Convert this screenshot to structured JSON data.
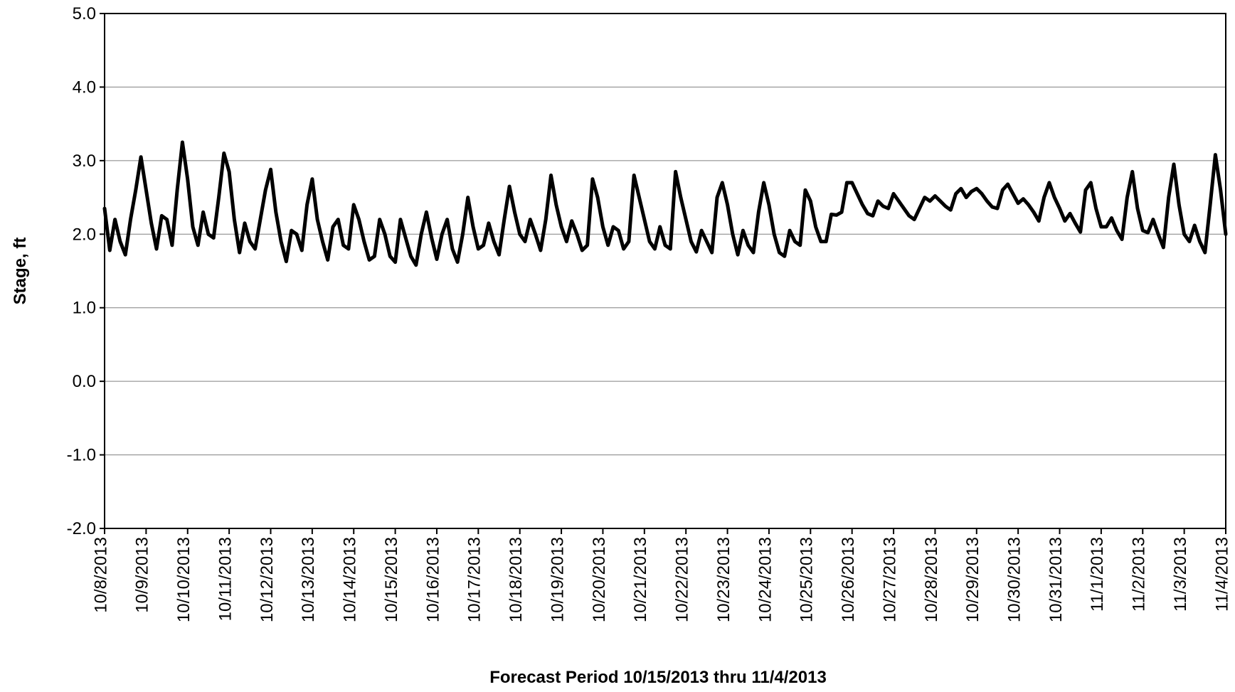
{
  "chart_data": {
    "type": "line",
    "y_label": "Stage, ft",
    "x_label": "Forecast Period 10/15/2013 thru 11/4/2013",
    "categories": [
      "10/8/2013",
      null,
      null,
      null,
      null,
      null,
      null,
      null,
      "10/9/2013",
      null,
      null,
      null,
      null,
      null,
      null,
      null,
      "10/10/2013",
      null,
      null,
      null,
      null,
      null,
      null,
      null,
      "10/11/2013",
      null,
      null,
      null,
      null,
      null,
      null,
      null,
      "10/12/2013",
      null,
      null,
      null,
      null,
      null,
      null,
      null,
      "10/13/2013",
      null,
      null,
      null,
      null,
      null,
      null,
      null,
      "10/14/2013",
      null,
      null,
      null,
      null,
      null,
      null,
      null,
      "10/15/2013",
      null,
      null,
      null,
      null,
      null,
      null,
      null,
      "10/16/2013",
      null,
      null,
      null,
      null,
      null,
      null,
      null,
      "10/17/2013",
      null,
      null,
      null,
      null,
      null,
      null,
      null,
      "10/18/2013",
      null,
      null,
      null,
      null,
      null,
      null,
      null,
      "10/19/2013",
      null,
      null,
      null,
      null,
      null,
      null,
      null,
      "10/20/2013",
      null,
      null,
      null,
      null,
      null,
      null,
      null,
      "10/21/2013",
      null,
      null,
      null,
      null,
      null,
      null,
      null,
      "10/22/2013",
      null,
      null,
      null,
      null,
      null,
      null,
      null,
      "10/23/2013",
      null,
      null,
      null,
      null,
      null,
      null,
      null,
      "10/24/2013",
      null,
      null,
      null,
      null,
      null,
      null,
      null,
      "10/25/2013",
      null,
      null,
      null,
      null,
      null,
      null,
      null,
      "10/26/2013",
      null,
      null,
      null,
      null,
      null,
      null,
      null,
      "10/27/2013",
      null,
      null,
      null,
      null,
      null,
      null,
      null,
      "10/28/2013",
      null,
      null,
      null,
      null,
      null,
      null,
      null,
      "10/29/2013",
      null,
      null,
      null,
      null,
      null,
      null,
      null,
      "10/30/2013",
      null,
      null,
      null,
      null,
      null,
      null,
      null,
      "10/31/2013",
      null,
      null,
      null,
      null,
      null,
      null,
      null,
      "11/1/2013",
      null,
      null,
      null,
      null,
      null,
      null,
      null,
      "11/2/2013",
      null,
      null,
      null,
      null,
      null,
      null,
      null,
      "11/3/2013",
      null,
      null,
      null,
      null,
      null,
      null,
      null,
      "11/4/2013"
    ],
    "series": [
      {
        "color": "#000000",
        "values": [
          2.35,
          1.78,
          2.2,
          1.9,
          1.72,
          2.2,
          2.6,
          3.05,
          2.6,
          2.15,
          1.8,
          2.25,
          2.2,
          1.85,
          2.6,
          3.25,
          2.75,
          2.1,
          1.85,
          2.3,
          2.0,
          1.95,
          2.5,
          3.1,
          2.85,
          2.2,
          1.75,
          2.15,
          1.9,
          1.8,
          2.2,
          2.6,
          2.88,
          2.3,
          1.9,
          1.63,
          2.05,
          2.0,
          1.78,
          2.4,
          2.75,
          2.2,
          1.9,
          1.65,
          2.1,
          2.2,
          1.85,
          1.8,
          2.4,
          2.2,
          1.9,
          1.65,
          1.7,
          2.2,
          2.0,
          1.7,
          1.62,
          2.2,
          1.95,
          1.7,
          1.58,
          2.0,
          2.3,
          1.95,
          1.66,
          2.0,
          2.2,
          1.8,
          1.62,
          2.0,
          2.5,
          2.1,
          1.8,
          1.85,
          2.15,
          1.9,
          1.72,
          2.2,
          2.65,
          2.3,
          2.0,
          1.9,
          2.2,
          2.0,
          1.78,
          2.2,
          2.8,
          2.4,
          2.1,
          1.9,
          2.18,
          2.0,
          1.78,
          1.85,
          2.75,
          2.5,
          2.1,
          1.85,
          2.1,
          2.05,
          1.8,
          1.9,
          2.8,
          2.5,
          2.2,
          1.9,
          1.8,
          2.1,
          1.85,
          1.8,
          2.85,
          2.5,
          2.2,
          1.9,
          1.76,
          2.05,
          1.9,
          1.75,
          2.5,
          2.7,
          2.4,
          2.0,
          1.72,
          2.05,
          1.85,
          1.75,
          2.3,
          2.7,
          2.4,
          2.0,
          1.75,
          1.7,
          2.05,
          1.9,
          1.85,
          2.6,
          2.45,
          2.1,
          1.9,
          1.9,
          2.27,
          2.26,
          2.3,
          2.7,
          2.7,
          2.55,
          2.4,
          2.28,
          2.25,
          2.45,
          2.38,
          2.35,
          2.55,
          2.45,
          2.35,
          2.25,
          2.2,
          2.35,
          2.5,
          2.45,
          2.52,
          2.45,
          2.38,
          2.33,
          2.55,
          2.62,
          2.5,
          2.58,
          2.62,
          2.55,
          2.45,
          2.37,
          2.35,
          2.6,
          2.68,
          2.55,
          2.42,
          2.48,
          2.4,
          2.3,
          2.18,
          2.5,
          2.7,
          2.5,
          2.35,
          2.18,
          2.28,
          2.15,
          2.03,
          2.6,
          2.7,
          2.35,
          2.1,
          2.1,
          2.22,
          2.05,
          1.93,
          2.5,
          2.85,
          2.35,
          2.05,
          2.02,
          2.2,
          2.0,
          1.82,
          2.5,
          2.95,
          2.4,
          2.0,
          1.9,
          2.12,
          1.9,
          1.75,
          2.4,
          3.08,
          2.6,
          2.0
        ]
      }
    ],
    "ylim": [
      -2,
      5
    ],
    "yticks": [
      {
        "value": -2,
        "label": "-2.0"
      },
      {
        "value": -1,
        "label": "-1.0"
      },
      {
        "value": 0,
        "label": "0.0"
      },
      {
        "value": 1,
        "label": "1.0"
      },
      {
        "value": 2,
        "label": "2.0"
      },
      {
        "value": 3,
        "label": "3.0"
      },
      {
        "value": 4,
        "label": "4.0"
      },
      {
        "value": 5,
        "label": "5.0"
      }
    ],
    "grid": true
  }
}
